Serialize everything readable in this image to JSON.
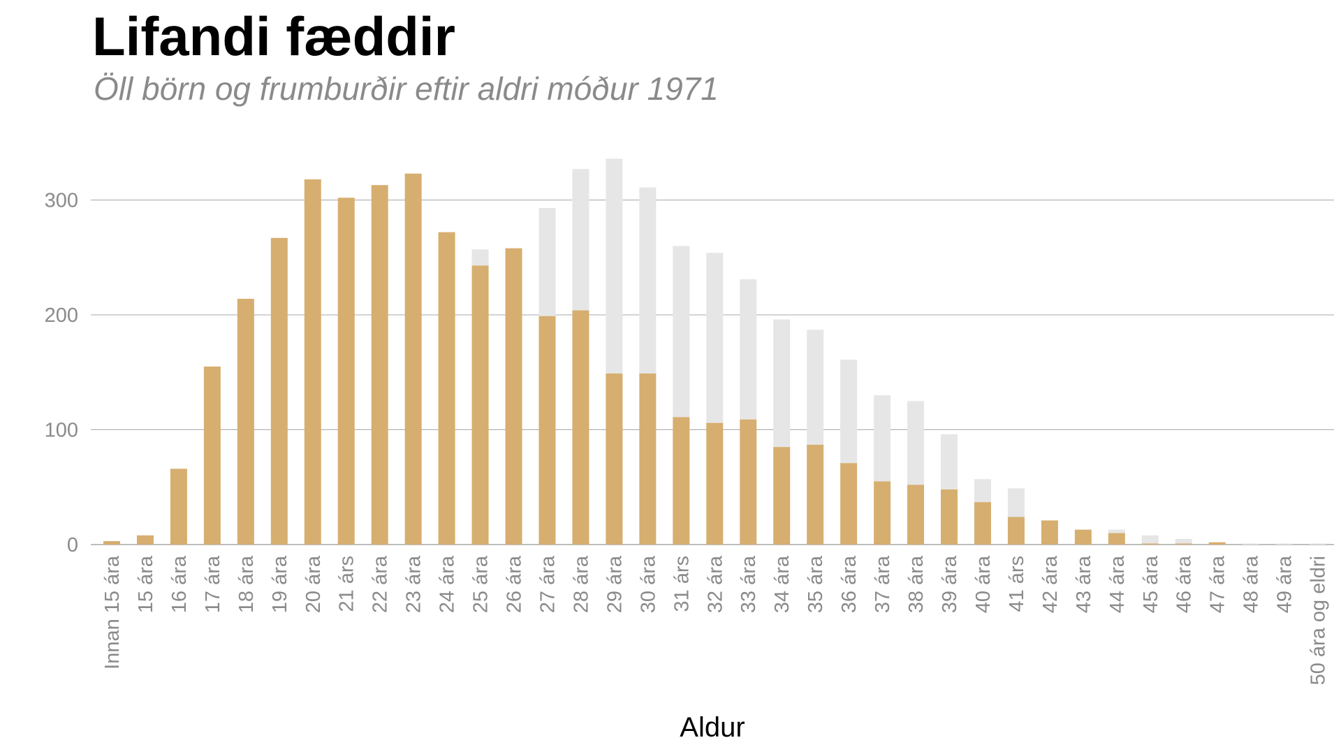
{
  "chart_data": {
    "type": "bar",
    "title": "Lifandi fæddir",
    "subtitle": "Öll börn og frumburðir eftir aldri móður 1971",
    "xlabel": "Aldur",
    "ylabel": "",
    "ylim": [
      0,
      340
    ],
    "yticks": [
      "0",
      "100",
      "200",
      "300"
    ],
    "grid": true,
    "legend": "none",
    "categories": [
      "Innan 15 ára",
      "15 ára",
      "16 ára",
      "17 ára",
      "18 ára",
      "19 ára",
      "20 ára",
      "21 árs",
      "22 ára",
      "23 ára",
      "24 ára",
      "25 ára",
      "26 ára",
      "27 ára",
      "28 ára",
      "29 ára",
      "30 ára",
      "31 árs",
      "32 ára",
      "33 ára",
      "34 ára",
      "35 ára",
      "36 ára",
      "37 ára",
      "38 ára",
      "39 ára",
      "40 ára",
      "41 árs",
      "42 ára",
      "43 ára",
      "44 ára",
      "45 ára",
      "46 ára",
      "47 ára",
      "48 ára",
      "49 ára",
      "50 ára og eldri"
    ],
    "series": [
      {
        "values": [
          3,
          8,
          66,
          155,
          214,
          267,
          318,
          302,
          313,
          323,
          272,
          257,
          258,
          293,
          327,
          336,
          311,
          260,
          254,
          231,
          196,
          187,
          161,
          130,
          125,
          96,
          57,
          49,
          21,
          13,
          13,
          8,
          5,
          2,
          1,
          1,
          1
        ]
      },
      {
        "values": [
          3,
          8,
          66,
          155,
          214,
          267,
          318,
          302,
          313,
          323,
          272,
          243,
          258,
          199,
          204,
          149,
          149,
          111,
          106,
          109,
          85,
          87,
          71,
          55,
          52,
          48,
          37,
          24,
          21,
          13,
          10,
          1,
          1,
          2,
          0,
          0,
          0
        ]
      }
    ],
    "colors": {
      "all_births": "#e6e6e6",
      "firstborn": "#e5a33a",
      "overlap": "#d6ae6f",
      "grid": "#a8a8a8",
      "tick_text": "#8a8a8a"
    }
  }
}
